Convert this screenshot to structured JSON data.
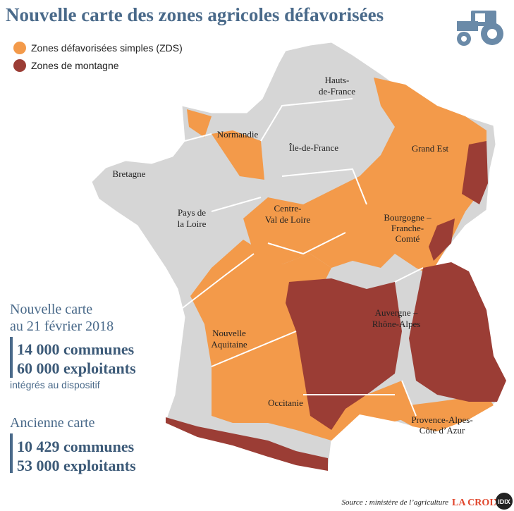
{
  "title": "Nouvelle carte des zones agricoles défavorisées",
  "legend": [
    {
      "label": "Zones défavorisées simples (ZDS)",
      "color": "#f39a4a"
    },
    {
      "label": "Zones de montagne",
      "color": "#9b3d35"
    }
  ],
  "regions": [
    {
      "lines": [
        "Hauts-",
        "de-France"
      ]
    },
    {
      "lines": [
        "Normandie"
      ]
    },
    {
      "lines": [
        "Île-de-France"
      ]
    },
    {
      "lines": [
        "Grand Est"
      ]
    },
    {
      "lines": [
        "Bretagne"
      ]
    },
    {
      "lines": [
        "Pays de",
        "la Loire"
      ]
    },
    {
      "lines": [
        "Centre-",
        "Val de Loire"
      ]
    },
    {
      "lines": [
        "Bourgogne –",
        "Franche-",
        "Comté"
      ]
    },
    {
      "lines": [
        "Auvergne –",
        "Rhône-Alpes"
      ]
    },
    {
      "lines": [
        "Nouvelle",
        "Aquitaine"
      ]
    },
    {
      "lines": [
        "Occitanie"
      ]
    },
    {
      "lines": [
        "Provence-Alpes-",
        "Côte d’Azur"
      ]
    }
  ],
  "new_map": {
    "heading": [
      "Nouvelle carte",
      "au 21 février 2018"
    ],
    "figures": [
      "14 000 communes",
      "60 000 exploitants"
    ],
    "note": "intégrés au dispositif"
  },
  "old_map": {
    "heading": "Ancienne carte",
    "figures": [
      "10 429 communes",
      "53 000 exploitants"
    ]
  },
  "source": "Source : ministère de l’agriculture",
  "logos": [
    "LA CROIX",
    "IDIX"
  ]
}
